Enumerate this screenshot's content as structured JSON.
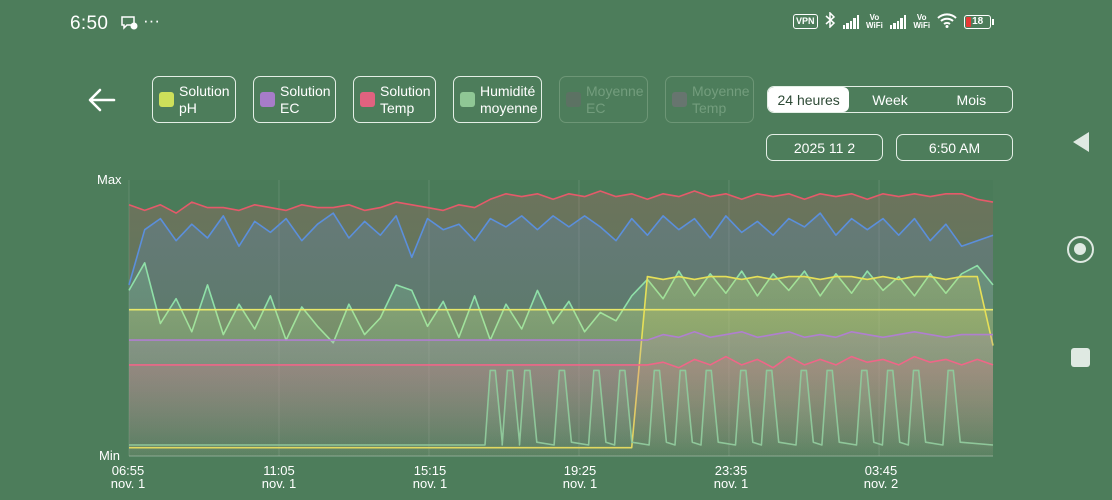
{
  "status_bar": {
    "time": "6:50",
    "more": "···",
    "vpn": "VPN",
    "vowifi_1": "Vo\nWiFi",
    "vowifi_2": "Vo\nWiFi",
    "battery": "18"
  },
  "legend": [
    {
      "label": "Solution\npH",
      "color": "#cde05a",
      "enabled": true
    },
    {
      "label": "Solution\nEC",
      "color": "#a77cc9",
      "enabled": true
    },
    {
      "label": "Solution\nTemp",
      "color": "#e0627f",
      "enabled": true
    },
    {
      "label": "Humidité\nmoyenne",
      "color": "#8fc795",
      "enabled": true
    },
    {
      "label": "Moyenne\nEC",
      "color": "#6a6a6a",
      "enabled": false
    },
    {
      "label": "Moyenne\nTemp",
      "color": "#7d7080",
      "enabled": false
    }
  ],
  "range": {
    "options": [
      "24 heures",
      "Week",
      "Mois"
    ],
    "selected": "24 heures"
  },
  "date": "2025 11 2",
  "time": "6:50 AM",
  "chart_data": {
    "type": "line",
    "y_axis_labels": {
      "top": "Max",
      "bottom": "Min"
    },
    "x_ticks": [
      {
        "time": "06:55",
        "date": "nov. 1"
      },
      {
        "time": "11:05",
        "date": "nov. 1"
      },
      {
        "time": "15:15",
        "date": "nov. 1"
      },
      {
        "time": "19:25",
        "date": "nov. 1"
      },
      {
        "time": "23:35",
        "date": "nov. 1"
      },
      {
        "time": "03:45",
        "date": "nov. 2"
      }
    ],
    "x_range_hours": [
      0,
      24
    ],
    "y_range": [
      0,
      1
    ],
    "grid": true,
    "series": [
      {
        "color": "#e55a6a",
        "values": [
          0.91,
          0.89,
          0.91,
          0.88,
          0.92,
          0.9,
          0.9,
          0.89,
          0.91,
          0.9,
          0.89,
          0.91,
          0.9,
          0.9,
          0.91,
          0.89,
          0.9,
          0.92,
          0.91,
          0.9,
          0.89,
          0.91,
          0.9,
          0.93,
          0.95,
          0.94,
          0.95,
          0.93,
          0.95,
          0.94,
          0.96,
          0.94,
          0.95,
          0.93,
          0.95,
          0.94,
          0.96,
          0.94,
          0.95,
          0.93,
          0.95,
          0.94,
          0.95,
          0.93,
          0.95,
          0.94,
          0.95,
          0.93,
          0.95,
          0.94,
          0.95,
          0.94,
          0.95,
          0.95,
          0.93,
          0.92
        ]
      },
      {
        "color": "#5b8fdc",
        "values": [
          0.62,
          0.82,
          0.86,
          0.78,
          0.84,
          0.79,
          0.87,
          0.76,
          0.85,
          0.81,
          0.86,
          0.78,
          0.84,
          0.88,
          0.79,
          0.85,
          0.8,
          0.87,
          0.72,
          0.86,
          0.82,
          0.84,
          0.78,
          0.86,
          0.83,
          0.87,
          0.82,
          0.87,
          0.83,
          0.87,
          0.83,
          0.78,
          0.86,
          0.8,
          0.87,
          0.82,
          0.86,
          0.79,
          0.87,
          0.81,
          0.85,
          0.8,
          0.86,
          0.83,
          0.88,
          0.8,
          0.86,
          0.82,
          0.86,
          0.8,
          0.86,
          0.78,
          0.84,
          0.76,
          0.78,
          0.8
        ]
      },
      {
        "color": "#8fe0a8",
        "values": [
          0.6,
          0.7,
          0.48,
          0.57,
          0.45,
          0.62,
          0.44,
          0.55,
          0.46,
          0.58,
          0.42,
          0.54,
          0.47,
          0.41,
          0.55,
          0.44,
          0.5,
          0.62,
          0.6,
          0.47,
          0.56,
          0.43,
          0.58,
          0.42,
          0.55,
          0.46,
          0.6,
          0.48,
          0.56,
          0.45,
          0.52,
          0.49,
          0.58,
          0.64,
          0.57,
          0.67,
          0.58,
          0.66,
          0.59,
          0.67,
          0.58,
          0.66,
          0.6,
          0.67,
          0.58,
          0.66,
          0.59,
          0.67,
          0.6,
          0.65,
          0.58,
          0.66,
          0.59,
          0.66,
          0.69,
          0.62
        ]
      },
      {
        "color": "#e8e86a",
        "values": [
          0.53,
          0.53,
          0.53,
          0.53,
          0.53,
          0.53,
          0.53,
          0.53,
          0.53,
          0.53,
          0.53,
          0.53,
          0.53,
          0.53,
          0.53,
          0.53,
          0.53,
          0.53,
          0.53,
          0.53,
          0.53,
          0.53,
          0.53,
          0.53,
          0.53,
          0.53,
          0.53,
          0.53,
          0.53,
          0.53,
          0.53,
          0.53,
          0.53,
          0.53,
          0.53,
          0.53,
          0.53,
          0.53,
          0.53,
          0.53,
          0.53,
          0.53,
          0.53,
          0.53,
          0.53,
          0.53,
          0.53,
          0.53,
          0.53,
          0.53,
          0.53,
          0.53,
          0.53,
          0.53,
          0.53,
          0.53
        ]
      },
      {
        "color": "#e6e058",
        "values": [
          0.03,
          0.03,
          0.03,
          0.03,
          0.03,
          0.03,
          0.03,
          0.03,
          0.03,
          0.03,
          0.03,
          0.03,
          0.03,
          0.03,
          0.03,
          0.03,
          0.03,
          0.03,
          0.03,
          0.03,
          0.03,
          0.03,
          0.03,
          0.03,
          0.03,
          0.03,
          0.03,
          0.03,
          0.03,
          0.03,
          0.03,
          0.03,
          0.03,
          0.65,
          0.64,
          0.65,
          0.64,
          0.65,
          0.65,
          0.64,
          0.65,
          0.64,
          0.65,
          0.65,
          0.64,
          0.65,
          0.65,
          0.64,
          0.65,
          0.64,
          0.65,
          0.65,
          0.64,
          0.65,
          0.65,
          0.4
        ]
      },
      {
        "color": "#b07fd0",
        "values": [
          0.42,
          0.42,
          0.42,
          0.42,
          0.42,
          0.42,
          0.42,
          0.42,
          0.42,
          0.42,
          0.42,
          0.42,
          0.42,
          0.42,
          0.42,
          0.42,
          0.42,
          0.42,
          0.42,
          0.42,
          0.42,
          0.42,
          0.42,
          0.42,
          0.42,
          0.42,
          0.42,
          0.42,
          0.42,
          0.42,
          0.42,
          0.42,
          0.42,
          0.42,
          0.44,
          0.43,
          0.45,
          0.43,
          0.44,
          0.45,
          0.43,
          0.44,
          0.45,
          0.43,
          0.44,
          0.43,
          0.45,
          0.44,
          0.43,
          0.44,
          0.45,
          0.44,
          0.43,
          0.44,
          0.44,
          0.44
        ]
      },
      {
        "color": "#ef6688",
        "values": [
          0.33,
          0.33,
          0.33,
          0.33,
          0.33,
          0.33,
          0.33,
          0.33,
          0.33,
          0.33,
          0.33,
          0.33,
          0.33,
          0.33,
          0.33,
          0.33,
          0.33,
          0.33,
          0.33,
          0.33,
          0.33,
          0.33,
          0.33,
          0.33,
          0.33,
          0.33,
          0.33,
          0.33,
          0.33,
          0.33,
          0.33,
          0.33,
          0.33,
          0.33,
          0.34,
          0.32,
          0.35,
          0.33,
          0.36,
          0.33,
          0.35,
          0.32,
          0.36,
          0.33,
          0.35,
          0.33,
          0.36,
          0.34,
          0.35,
          0.33,
          0.36,
          0.34,
          0.35,
          0.33,
          0.35,
          0.33
        ]
      },
      {
        "color": "#8fc79a",
        "values": [
          0.04,
          0.04,
          0.04,
          0.04,
          0.04,
          0.04,
          0.04,
          0.04,
          0.04,
          0.04,
          0.04,
          0.04,
          0.04,
          0.04,
          0.04,
          0.04,
          0.04,
          0.04,
          0.04,
          0.04,
          0.04,
          0.04,
          0.04,
          0.04,
          0.04,
          0.04,
          0.04,
          0.04,
          0.04,
          0.04,
          0.04,
          0.04,
          0.04,
          0.04,
          0.04,
          0.04,
          0.04,
          0.04,
          0.04,
          0.04,
          0.04,
          0.04,
          0.04,
          0.04,
          0.04,
          0.04,
          0.04,
          0.04,
          0.04,
          0.04,
          0.04,
          0.04,
          0.04,
          0.04,
          0.04,
          0.04
        ],
        "peaks": [
          0.42,
          0.44,
          0.46,
          0.5,
          0.54,
          0.57,
          0.61,
          0.64,
          0.67,
          0.71,
          0.74,
          0.78,
          0.81,
          0.85,
          0.88,
          0.91,
          0.95
        ],
        "peak_value": 0.27
      }
    ]
  }
}
